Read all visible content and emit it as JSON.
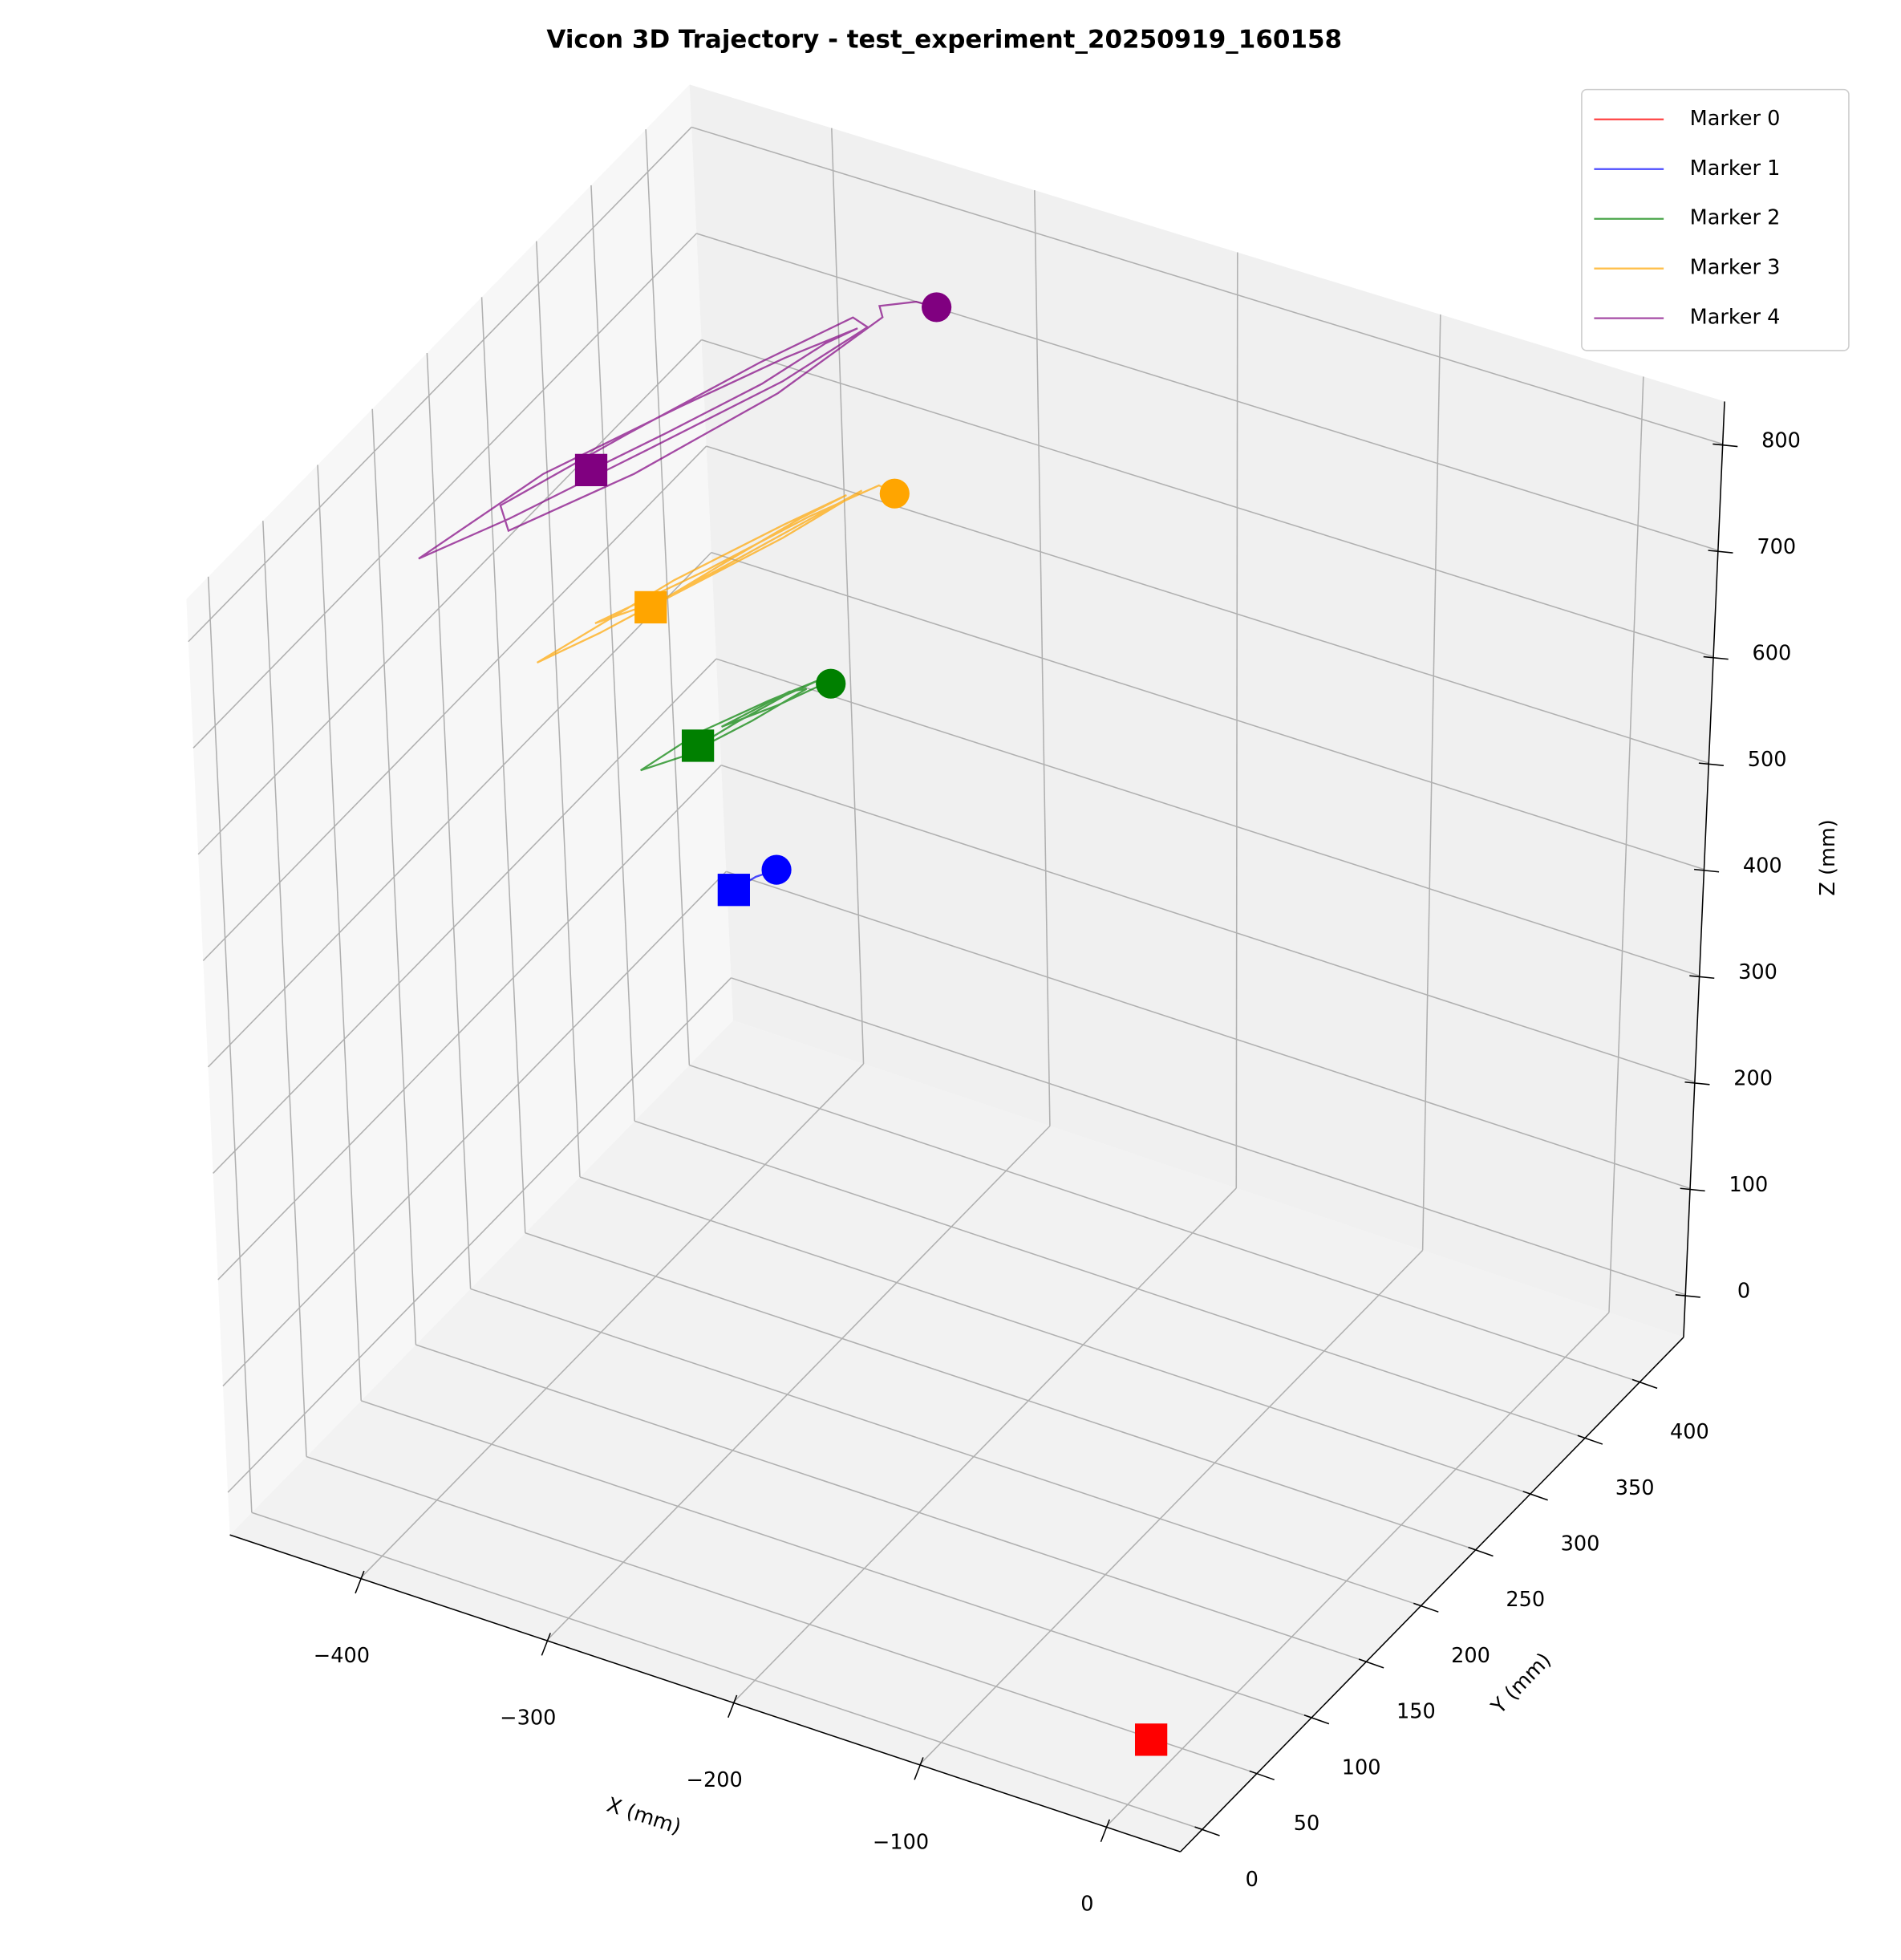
{
  "chart_data": {
    "type": "line3d",
    "title": "Vicon 3D Trajectory - test_experiment_20250919_160158",
    "xlabel": "X (mm)",
    "ylabel": "Y (mm)",
    "zlabel": "Z (mm)",
    "xlim": [
      -470,
      40
    ],
    "ylim": [
      -20,
      440
    ],
    "zlim": [
      -40,
      840
    ],
    "xticks": [
      {
        "value": -400,
        "label": "−400"
      },
      {
        "value": -300,
        "label": "−300"
      },
      {
        "value": -200,
        "label": "−200"
      },
      {
        "value": -100,
        "label": "−100"
      },
      0
    ],
    "yticks": [
      0,
      50,
      100,
      150,
      200,
      250,
      300,
      350,
      400
    ],
    "zticks": [
      0,
      100,
      200,
      300,
      400,
      500,
      600,
      700,
      800
    ],
    "grid": true,
    "legend": "upper right",
    "series": [
      {
        "name": "Marker 0",
        "color": "red",
        "x": [
          0
        ],
        "y": [
          20
        ],
        "z": [
          0
        ]
      },
      {
        "name": "Marker 1",
        "color": "blue",
        "x": [
          -332,
          -328,
          -323
        ],
        "y": [
          215,
          228,
          238
        ],
        "z": [
          400,
          401,
          400
        ]
      },
      {
        "name": "Marker 2",
        "color": "green",
        "x": [
          -347,
          -340,
          -330,
          -322,
          -335,
          -352,
          -364,
          -350,
          -335,
          -324,
          -330,
          -345,
          -330,
          -320,
          -319
        ],
        "y": [
          212,
          235,
          262,
          278,
          255,
          222,
          190,
          205,
          240,
          270,
          265,
          230,
          255,
          275,
          283
        ],
        "z": [
          530,
          532,
          535,
          537,
          534,
          529,
          520,
          526,
          531,
          536,
          535,
          530,
          533,
          536,
          530
        ]
      },
      {
        "name": "Marker 3",
        "color": "orange",
        "x": [
          -368,
          -355,
          -340,
          -330,
          -345,
          -370,
          -395,
          -380,
          -355,
          -335,
          -325,
          -340,
          -365,
          -385,
          -360,
          -338,
          -322,
          -317
        ],
        "y": [
          210,
          250,
          295,
          320,
          290,
          235,
          155,
          185,
          250,
          300,
          325,
          280,
          220,
          190,
          245,
          300,
          335,
          340
        ],
        "z": [
          650,
          655,
          660,
          662,
          657,
          648,
          640,
          645,
          652,
          660,
          664,
          658,
          650,
          646,
          652,
          658,
          660,
          650
        ]
      },
      {
        "name": "Marker 4",
        "color": "purple",
        "x": [
          -397,
          -380,
          -360,
          -350,
          -345,
          -365,
          -390,
          -420,
          -438,
          -415,
          -385,
          -355,
          -340,
          -350,
          -372,
          -400,
          -425,
          -410,
          -380,
          -352,
          -338,
          -345,
          -335,
          -326
        ],
        "y": [
          212,
          250,
          300,
          340,
          360,
          330,
          280,
          210,
          129,
          170,
          240,
          310,
          360,
          365,
          320,
          250,
          180,
          160,
          220,
          300,
          370,
          380,
          395,
          397
        ],
        "z": [
          760,
          765,
          770,
          772,
          768,
          760,
          752,
          745,
          740,
          748,
          756,
          765,
          772,
          770,
          762,
          752,
          744,
          750,
          758,
          766,
          772,
          768,
          762,
          760
        ]
      }
    ]
  }
}
